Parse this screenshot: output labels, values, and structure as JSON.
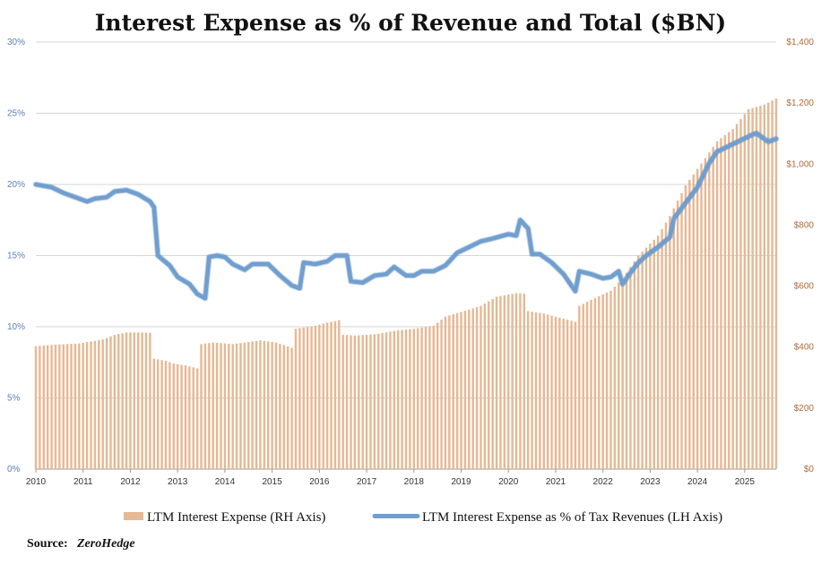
{
  "chart_data": {
    "type": "bar+line",
    "title": "Interest Expense as % of  Revenue and Total ($BN)",
    "x_start": "2010-01",
    "x_end": "2025-09",
    "x_ticks": [
      "2010",
      "2011",
      "2012",
      "2013",
      "2014",
      "2015",
      "2016",
      "2017",
      "2018",
      "2019",
      "2020",
      "2021",
      "2022",
      "2023",
      "2024",
      "2025"
    ],
    "y_left": {
      "ticks": [
        "0%",
        "5%",
        "10%",
        "15%",
        "20%",
        "25%",
        "30%"
      ],
      "min": 0,
      "max": 30
    },
    "y_right": {
      "ticks": [
        "$0",
        "$200",
        "$400",
        "$600",
        "$800",
        "$1,000",
        "$1,200",
        "$1,400"
      ],
      "min": 0,
      "max": 1400
    },
    "legend": [
      {
        "label": "LTM Interest Expense (RH Axis)",
        "kind": "bar",
        "color": "#e6b893"
      },
      {
        "label": "LTM Interest Expense as % of Tax Revenues (LH Axis)",
        "kind": "line",
        "color": "#6f9fd0"
      }
    ],
    "source_label": "Source:",
    "source_value": "ZeroHedge",
    "series": [
      {
        "name": "LTM Interest Expense (RH Axis)",
        "axis": "right",
        "type": "bar",
        "color": "#e6b893",
        "points": [
          [
            "2010-01",
            403
          ],
          [
            "2010-06",
            408
          ],
          [
            "2010-12",
            412
          ],
          [
            "2011-06",
            425
          ],
          [
            "2011-09",
            440
          ],
          [
            "2011-12",
            448
          ],
          [
            "2012-04",
            448
          ],
          [
            "2012-06",
            447
          ],
          [
            "2012-07",
            362
          ],
          [
            "2012-10",
            355
          ],
          [
            "2012-12",
            346
          ],
          [
            "2013-03",
            340
          ],
          [
            "2013-06",
            330
          ],
          [
            "2013-07",
            410
          ],
          [
            "2013-10",
            415
          ],
          [
            "2014-03",
            410
          ],
          [
            "2014-06",
            415
          ],
          [
            "2014-10",
            422
          ],
          [
            "2015-02",
            415
          ],
          [
            "2015-06",
            398
          ],
          [
            "2015-07",
            460
          ],
          [
            "2015-12",
            470
          ],
          [
            "2016-03",
            480
          ],
          [
            "2016-06",
            488
          ],
          [
            "2016-07",
            440
          ],
          [
            "2016-10",
            438
          ],
          [
            "2017-03",
            442
          ],
          [
            "2017-09",
            455
          ],
          [
            "2018-01",
            460
          ],
          [
            "2018-06",
            470
          ],
          [
            "2018-09",
            500
          ],
          [
            "2019-03",
            523
          ],
          [
            "2019-06",
            535
          ],
          [
            "2019-10",
            565
          ],
          [
            "2020-03",
            577
          ],
          [
            "2020-05",
            575
          ],
          [
            "2020-06",
            518
          ],
          [
            "2020-10",
            510
          ],
          [
            "2021-03",
            493
          ],
          [
            "2021-06",
            483
          ],
          [
            "2021-07",
            535
          ],
          [
            "2021-10",
            555
          ],
          [
            "2022-03",
            585
          ],
          [
            "2022-06",
            625
          ],
          [
            "2022-10",
            700
          ],
          [
            "2023-03",
            765
          ],
          [
            "2023-06",
            830
          ],
          [
            "2023-10",
            930
          ],
          [
            "2024-03",
            1020
          ],
          [
            "2024-06",
            1075
          ],
          [
            "2024-10",
            1115
          ],
          [
            "2025-02",
            1180
          ],
          [
            "2025-06",
            1195
          ],
          [
            "2025-09",
            1215
          ]
        ]
      },
      {
        "name": "LTM Interest Expense as % of Tax Revenues (LH Axis)",
        "axis": "left",
        "type": "line",
        "color": "#6f9fd0",
        "points": [
          [
            "2010-01",
            20.0
          ],
          [
            "2010-03",
            19.9
          ],
          [
            "2010-05",
            19.8
          ],
          [
            "2010-08",
            19.4
          ],
          [
            "2010-11",
            19.1
          ],
          [
            "2011-02",
            18.8
          ],
          [
            "2011-04",
            19.0
          ],
          [
            "2011-07",
            19.1
          ],
          [
            "2011-09",
            19.5
          ],
          [
            "2011-12",
            19.6
          ],
          [
            "2012-03",
            19.3
          ],
          [
            "2012-06",
            18.8
          ],
          [
            "2012-07",
            18.4
          ],
          [
            "2012-08",
            15.0
          ],
          [
            "2012-11",
            14.3
          ],
          [
            "2013-01",
            13.5
          ],
          [
            "2013-04",
            13.0
          ],
          [
            "2013-06",
            12.3
          ],
          [
            "2013-08",
            12.0
          ],
          [
            "2013-09",
            14.9
          ],
          [
            "2013-11",
            15.0
          ],
          [
            "2014-01",
            14.9
          ],
          [
            "2014-03",
            14.4
          ],
          [
            "2014-06",
            14.0
          ],
          [
            "2014-08",
            14.4
          ],
          [
            "2014-12",
            14.4
          ],
          [
            "2015-03",
            13.6
          ],
          [
            "2015-06",
            12.9
          ],
          [
            "2015-08",
            12.7
          ],
          [
            "2015-09",
            14.5
          ],
          [
            "2015-12",
            14.4
          ],
          [
            "2016-03",
            14.6
          ],
          [
            "2016-05",
            15.0
          ],
          [
            "2016-08",
            15.0
          ],
          [
            "2016-09",
            13.2
          ],
          [
            "2016-12",
            13.1
          ],
          [
            "2017-03",
            13.6
          ],
          [
            "2017-06",
            13.7
          ],
          [
            "2017-08",
            14.2
          ],
          [
            "2017-11",
            13.6
          ],
          [
            "2018-01",
            13.6
          ],
          [
            "2018-03",
            13.9
          ],
          [
            "2018-06",
            13.9
          ],
          [
            "2018-09",
            14.3
          ],
          [
            "2018-12",
            15.2
          ],
          [
            "2019-03",
            15.6
          ],
          [
            "2019-06",
            16.0
          ],
          [
            "2019-09",
            16.2
          ],
          [
            "2020-01",
            16.5
          ],
          [
            "2020-03",
            16.4
          ],
          [
            "2020-04",
            17.5
          ],
          [
            "2020-06",
            16.9
          ],
          [
            "2020-07",
            15.1
          ],
          [
            "2020-09",
            15.1
          ],
          [
            "2020-12",
            14.5
          ],
          [
            "2021-03",
            13.7
          ],
          [
            "2021-06",
            12.5
          ],
          [
            "2021-07",
            13.9
          ],
          [
            "2021-10",
            13.7
          ],
          [
            "2022-01",
            13.4
          ],
          [
            "2022-03",
            13.5
          ],
          [
            "2022-05",
            13.9
          ],
          [
            "2022-06",
            13.0
          ],
          [
            "2022-08",
            13.8
          ],
          [
            "2022-10",
            14.5
          ],
          [
            "2022-12",
            15.0
          ],
          [
            "2023-03",
            15.6
          ],
          [
            "2023-06",
            16.3
          ],
          [
            "2023-07",
            17.6
          ],
          [
            "2023-10",
            18.7
          ],
          [
            "2024-01",
            19.8
          ],
          [
            "2024-04",
            21.5
          ],
          [
            "2024-06",
            22.3
          ],
          [
            "2024-09",
            22.7
          ],
          [
            "2024-12",
            23.1
          ],
          [
            "2025-03",
            23.5
          ],
          [
            "2025-04",
            23.6
          ],
          [
            "2025-07",
            23.0
          ],
          [
            "2025-09",
            23.2
          ]
        ]
      }
    ]
  }
}
